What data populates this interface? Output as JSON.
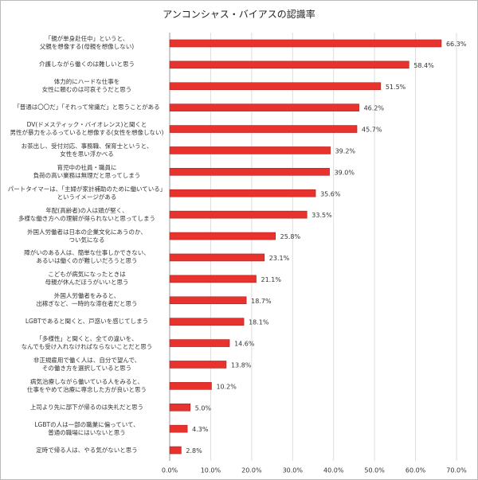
{
  "chart_data": {
    "type": "hbar",
    "title": "アンコンシャス・バイアスの認識率",
    "categories": [
      "「親が単身赴任中」というと、\n父親を想像する(母親を想像しない)",
      "介護しながら働くのは難しいと思う",
      "体力的にハードな仕事を\n女性に頼むのは可哀そうだと思う",
      "「普通は〇〇だ」「それって常識だ」と思うことがある",
      "DV(ドメスティック・バイオレンス)と聞くと\n男性が暴力をふるっていると想像する(女性を想像しない)",
      "お茶出し、受付対応、事務職、保育士というと、\n女性を思い浮かべる",
      "育児中の社員・職員に\n負荷の高い業務は無理だと思ってしまう",
      "パートタイマーは、「主婦が家計補助のために働いている」\nというイメージがある",
      "年配(高齢者)の人は頭が堅く、\n多様な働き方への理解が得られないと思ってしまう",
      "外国人労働者は日本の企業文化にあうのか、\nつい気になる",
      "障がいのある人は、簡単な仕事しかできない、\nあるいは働くのが難しいだろうと思う",
      "こどもが病気になったときは\n母親が休んだほうがいいと思う",
      "外国人労働者をみると、\n出稼ぎなど、一時的な滞在者だと思う",
      "LGBTであると聞くと、戸惑いを感じてしまう",
      "「多様性」と聞くと、全ての違いを、\nなんでも受け入れなければならないことだと思う",
      "非正規雇用で働く人は、自分で望んで、\nその働き方を選択していると思う",
      "病気治療しながら働いている人をみると、\n仕事をやめて治療に専念した方が良いと思う",
      "上司より先に部下が帰るのは失礼だと思う",
      "LGBTの人は一部の職業に偏っていて、\n普通の職場にはいないと思う",
      "定時で帰る人は、やる気がないと思う"
    ],
    "values": [
      66.3,
      58.4,
      51.5,
      46.2,
      45.7,
      39.2,
      39.0,
      35.6,
      33.5,
      25.8,
      23.1,
      21.1,
      18.7,
      18.1,
      14.6,
      13.8,
      10.2,
      5.0,
      4.3,
      2.8
    ],
    "value_labels": [
      "66.3%",
      "58.4%",
      "51.5%",
      "46.2%",
      "45.7%",
      "39.2%",
      "39.0%",
      "35.6%",
      "33.5%",
      "25.8%",
      "23.1%",
      "21.1%",
      "18.7%",
      "18.1%",
      "14.6%",
      "13.8%",
      "10.2%",
      "5.0%",
      "4.3%",
      "2.8%"
    ],
    "color": "#e8322e",
    "xlim": [
      0,
      70
    ],
    "xticks": [
      {
        "value": 0,
        "label": "0.0%"
      },
      {
        "value": 10,
        "label": "10.0%"
      },
      {
        "value": 20,
        "label": "20.0%"
      },
      {
        "value": 30,
        "label": "30.0%"
      },
      {
        "value": 40,
        "label": "40.0%"
      },
      {
        "value": 50,
        "label": "50.0%"
      },
      {
        "value": 60,
        "label": "60.0%"
      },
      {
        "value": 70,
        "label": "70.0%"
      }
    ],
    "grid": true
  }
}
